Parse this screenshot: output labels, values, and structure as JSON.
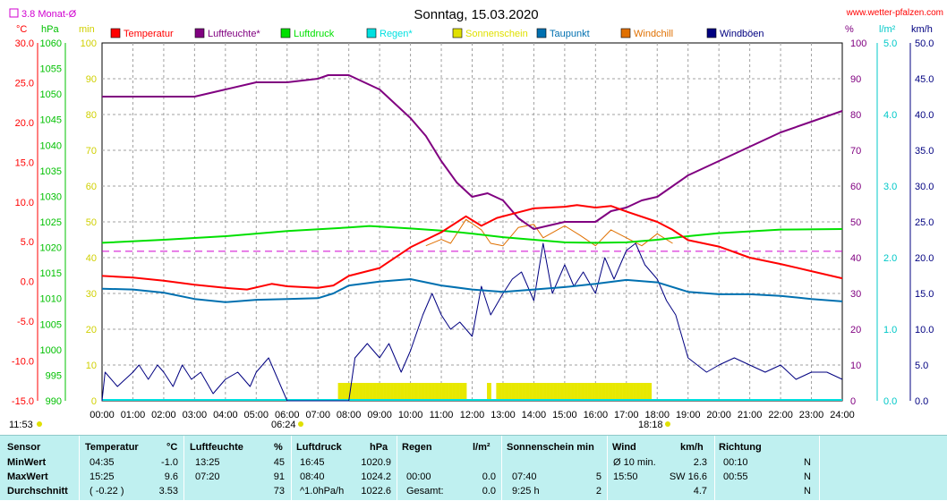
{
  "header": {
    "title": "Sonntag, 15.03.2020",
    "site": "www.wetter-pfalzen.com",
    "monthly_avg_label": "3.8 Monat-Ø",
    "unit_celsius": "°C",
    "unit_hpa": "hPa",
    "unit_min": "min",
    "unit_percent": "%",
    "unit_lm2": "l/m²",
    "unit_kmh": "km/h",
    "sunrise_time": "06:24",
    "sunset_time": "18:18",
    "now_time": "11:53"
  },
  "legend": [
    {
      "label": "Temperatur",
      "color": "#ff0000"
    },
    {
      "label": "Luftfeuchte*",
      "color": "#800080"
    },
    {
      "label": "Luftdruck",
      "color": "#00e000"
    },
    {
      "label": "Regen*",
      "color": "#00e0e0"
    },
    {
      "label": "Sonnenschein",
      "color": "#e0e000"
    },
    {
      "label": "Taupunkt",
      "color": "#0070b0"
    },
    {
      "label": "Windchill",
      "color": "#e07000"
    },
    {
      "label": "Windböen",
      "color": "#000080"
    }
  ],
  "chart_data": {
    "type": "line",
    "title": "Sonntag, 15.03.2020",
    "x_ticks": [
      "00:00",
      "01:00",
      "02:00",
      "03:00",
      "04:00",
      "05:00",
      "06:00",
      "07:00",
      "08:00",
      "09:00",
      "10:00",
      "11:00",
      "12:00",
      "13:00",
      "14:00",
      "15:00",
      "16:00",
      "17:00",
      "18:00",
      "19:00",
      "20:00",
      "21:00",
      "22:00",
      "23:00",
      "24:00"
    ],
    "axes": {
      "temperature_c": {
        "min": -15,
        "max": 30,
        "ticks": [
          "30.0",
          "25.0",
          "20.0",
          "15.0",
          "10.0",
          "5.0",
          "0.0",
          "-5.0",
          "-10.0",
          "-15.0"
        ]
      },
      "pressure_hpa": {
        "min": 990,
        "max": 1060,
        "ticks": [
          "1060",
          "1055",
          "1050",
          "1045",
          "1040",
          "1035",
          "1030",
          "1025",
          "1020",
          "1015",
          "1010",
          "1005",
          "1000",
          "995",
          "990"
        ]
      },
      "sunshine_min": {
        "min": 0,
        "max": 100,
        "ticks": [
          "100",
          "90",
          "80",
          "70",
          "60",
          "50",
          "40",
          "30",
          "20",
          "10",
          "0"
        ]
      },
      "humidity_pct": {
        "min": 0,
        "max": 100,
        "ticks": [
          "100",
          "90",
          "80",
          "70",
          "60",
          "50",
          "40",
          "30",
          "20",
          "10",
          "0"
        ]
      },
      "rain_lm2": {
        "min": 0,
        "max": 5,
        "ticks": [
          "5.0",
          "4.0",
          "3.0",
          "2.0",
          "1.0",
          "0.0"
        ]
      },
      "wind_kmh": {
        "min": 0,
        "max": 50,
        "ticks": [
          "50.0",
          "45.0",
          "40.0",
          "35.0",
          "30.0",
          "25.0",
          "20.0",
          "15.0",
          "10.0",
          "5.0",
          "0.0"
        ]
      }
    },
    "monthly_avg_temperature": 3.8,
    "series": [
      {
        "name": "Temperatur",
        "color": "#ff0000",
        "axis": "temperature_c",
        "points": [
          [
            0,
            0.7
          ],
          [
            1,
            0.5
          ],
          [
            2,
            0.1
          ],
          [
            3,
            -0.4
          ],
          [
            4,
            -0.8
          ],
          [
            4.7,
            -1.0
          ],
          [
            5.5,
            -0.3
          ],
          [
            6,
            -0.6
          ],
          [
            7,
            -0.8
          ],
          [
            7.5,
            -0.5
          ],
          [
            8,
            0.7
          ],
          [
            9,
            1.7
          ],
          [
            10,
            4.3
          ],
          [
            11,
            6.2
          ],
          [
            11.8,
            8.2
          ],
          [
            12.3,
            7.0
          ],
          [
            12.8,
            8.0
          ],
          [
            13.5,
            8.7
          ],
          [
            14,
            9.2
          ],
          [
            15,
            9.4
          ],
          [
            15.4,
            9.6
          ],
          [
            16,
            9.3
          ],
          [
            16.5,
            9.5
          ],
          [
            17,
            8.8
          ],
          [
            18,
            7.5
          ],
          [
            18.5,
            6.5
          ],
          [
            19,
            5.2
          ],
          [
            20,
            4.4
          ],
          [
            21,
            3.0
          ],
          [
            22,
            2.2
          ],
          [
            23,
            1.3
          ],
          [
            24,
            0.4
          ]
        ]
      },
      {
        "name": "Luftfeuchte*",
        "color": "#800080",
        "axis": "humidity_pct",
        "points": [
          [
            0,
            85
          ],
          [
            1,
            85
          ],
          [
            2,
            85
          ],
          [
            3,
            85
          ],
          [
            3.5,
            86
          ],
          [
            4,
            87
          ],
          [
            5,
            89
          ],
          [
            6,
            89
          ],
          [
            7,
            90
          ],
          [
            7.33,
            91
          ],
          [
            8,
            91
          ],
          [
            9,
            87
          ],
          [
            10,
            79
          ],
          [
            10.5,
            74
          ],
          [
            11,
            67
          ],
          [
            11.5,
            61
          ],
          [
            12,
            57
          ],
          [
            12.5,
            58
          ],
          [
            13,
            56
          ],
          [
            13.5,
            51
          ],
          [
            14,
            48
          ],
          [
            14.5,
            49
          ],
          [
            15,
            50
          ],
          [
            16,
            50
          ],
          [
            16.5,
            53
          ],
          [
            17,
            54
          ],
          [
            17.5,
            56
          ],
          [
            18,
            57
          ],
          [
            19,
            63
          ],
          [
            20,
            67
          ],
          [
            21,
            71
          ],
          [
            22,
            75
          ],
          [
            23,
            78
          ],
          [
            24,
            81
          ]
        ]
      },
      {
        "name": "Luftdruck",
        "color": "#00e000",
        "axis": "pressure_hpa",
        "points": [
          [
            0,
            1020.9
          ],
          [
            2,
            1021.5
          ],
          [
            4,
            1022.2
          ],
          [
            6,
            1023.2
          ],
          [
            8,
            1023.9
          ],
          [
            8.67,
            1024.2
          ],
          [
            10,
            1023.7
          ],
          [
            11,
            1023.3
          ],
          [
            12,
            1022.7
          ],
          [
            13,
            1022.0
          ],
          [
            14,
            1021.5
          ],
          [
            15,
            1021.0
          ],
          [
            16,
            1020.9
          ],
          [
            17,
            1021.0
          ],
          [
            18,
            1021.5
          ],
          [
            19,
            1022.2
          ],
          [
            20,
            1022.8
          ],
          [
            22,
            1023.5
          ],
          [
            24,
            1023.6
          ]
        ]
      },
      {
        "name": "Taupunkt",
        "color": "#0070b0",
        "axis": "temperature_c",
        "points": [
          [
            0,
            -0.9
          ],
          [
            1,
            -1.0
          ],
          [
            2,
            -1.4
          ],
          [
            3,
            -2.2
          ],
          [
            4,
            -2.6
          ],
          [
            5,
            -2.3
          ],
          [
            6,
            -2.2
          ],
          [
            7,
            -2.1
          ],
          [
            7.5,
            -1.5
          ],
          [
            8,
            -0.5
          ],
          [
            9,
            0.0
          ],
          [
            10,
            0.3
          ],
          [
            11,
            -0.5
          ],
          [
            12,
            -1.0
          ],
          [
            13,
            -1.3
          ],
          [
            14,
            -1.0
          ],
          [
            15,
            -0.7
          ],
          [
            16,
            -0.3
          ],
          [
            17,
            0.2
          ],
          [
            18,
            -0.1
          ],
          [
            19,
            -1.3
          ],
          [
            20,
            -1.6
          ],
          [
            21,
            -1.6
          ],
          [
            22,
            -1.8
          ],
          [
            23,
            -2.2
          ],
          [
            24,
            -2.5
          ]
        ]
      },
      {
        "name": "Windchill",
        "color": "#e07000",
        "axis": "temperature_c",
        "points": [
          [
            10.5,
            4.5
          ],
          [
            11,
            5.3
          ],
          [
            11.3,
            4.8
          ],
          [
            11.8,
            7.8
          ],
          [
            12.3,
            6.5
          ],
          [
            12.6,
            4.8
          ],
          [
            13,
            4.5
          ],
          [
            13.5,
            6.8
          ],
          [
            14,
            7.2
          ],
          [
            14.3,
            5.5
          ],
          [
            15,
            7.0
          ],
          [
            15.5,
            5.8
          ],
          [
            16,
            4.5
          ],
          [
            16.5,
            6.5
          ],
          [
            17,
            5.5
          ],
          [
            17.5,
            4.5
          ],
          [
            18,
            6.0
          ],
          [
            18.5,
            4.8
          ]
        ]
      },
      {
        "name": "Windböen",
        "color": "#000080",
        "axis": "wind_kmh",
        "points": [
          [
            0,
            0
          ],
          [
            0.1,
            4
          ],
          [
            0.5,
            2
          ],
          [
            1,
            4
          ],
          [
            1.2,
            5
          ],
          [
            1.5,
            3
          ],
          [
            1.8,
            5
          ],
          [
            2,
            4
          ],
          [
            2.3,
            2
          ],
          [
            2.6,
            5
          ],
          [
            2.9,
            3
          ],
          [
            3.2,
            4
          ],
          [
            3.6,
            1
          ],
          [
            4,
            3
          ],
          [
            4.4,
            4
          ],
          [
            4.8,
            2
          ],
          [
            5,
            4
          ],
          [
            5.4,
            6
          ],
          [
            5.6,
            4
          ],
          [
            6,
            0
          ],
          [
            6.3,
            0
          ],
          [
            8,
            0
          ],
          [
            8.2,
            6
          ],
          [
            8.6,
            8
          ],
          [
            9,
            6
          ],
          [
            9.3,
            8
          ],
          [
            9.7,
            4
          ],
          [
            10,
            7
          ],
          [
            10.4,
            12
          ],
          [
            10.7,
            15
          ],
          [
            11,
            12
          ],
          [
            11.3,
            10
          ],
          [
            11.6,
            11
          ],
          [
            12,
            9
          ],
          [
            12.3,
            16
          ],
          [
            12.6,
            12
          ],
          [
            13,
            15
          ],
          [
            13.3,
            17
          ],
          [
            13.6,
            18
          ],
          [
            14,
            14
          ],
          [
            14.3,
            22
          ],
          [
            14.6,
            15
          ],
          [
            15,
            19
          ],
          [
            15.3,
            16
          ],
          [
            15.6,
            18
          ],
          [
            16,
            15
          ],
          [
            16.3,
            20
          ],
          [
            16.6,
            17
          ],
          [
            17,
            21
          ],
          [
            17.3,
            22
          ],
          [
            17.6,
            19
          ],
          [
            18,
            17
          ],
          [
            18.3,
            14
          ],
          [
            18.6,
            12
          ],
          [
            19,
            6
          ],
          [
            19.3,
            5
          ],
          [
            19.6,
            4
          ],
          [
            20,
            5
          ],
          [
            20.5,
            6
          ],
          [
            21,
            5
          ],
          [
            21.5,
            4
          ],
          [
            22,
            5
          ],
          [
            22.5,
            3
          ],
          [
            23,
            4
          ],
          [
            23.5,
            4
          ],
          [
            24,
            3
          ]
        ]
      }
    ],
    "sunshine_intervals": [
      [
        7.67,
        11.83
      ],
      [
        12.5,
        12.6
      ],
      [
        12.8,
        17.83
      ]
    ],
    "rain_total": 0.0
  },
  "stats": {
    "headers": {
      "sensor": "Sensor",
      "temperature": "Temperatur",
      "temp_unit": "°C",
      "humidity": "Luftfeuchte",
      "hum_unit": "%",
      "pressure": "Luftdruck",
      "press_unit": "hPa",
      "rain": "Regen",
      "rain_unit": "l/m²",
      "sunshine": "Sonnenschein min",
      "wind": "Wind",
      "wind_unit": "km/h",
      "direction": "Richtung"
    },
    "rows": [
      {
        "label": "MinWert",
        "temp_time": "04:35",
        "temp_val": "-1.0",
        "hum_time": "13:25",
        "hum_val": "45",
        "press_time": "16:45",
        "press_val": "1020.9",
        "rain_time": "",
        "rain_val": "",
        "sun_time": "",
        "sun_val": "",
        "wind_time": "Ø 10 min.",
        "wind_val": "2.3",
        "dir_time": "00:10",
        "dir_val": "N"
      },
      {
        "label": "MaxWert",
        "temp_time": "15:25",
        "temp_val": "9.6",
        "hum_time": "07:20",
        "hum_val": "91",
        "press_time": "08:40",
        "press_val": "1024.2",
        "rain_time": "00:00",
        "rain_val": "0.0",
        "sun_time": "07:40",
        "sun_val": "5",
        "wind_time": "15:50",
        "wind_val": "SW 16.6",
        "dir_time": "00:55",
        "dir_val": "N"
      },
      {
        "label": "Durchschnitt",
        "temp_time": "( -0.22 )",
        "temp_val": "3.53",
        "hum_time": "",
        "hum_val": "73",
        "press_time": "^1.0hPa/h",
        "press_val": "1022.6",
        "rain_time": "Gesamt:",
        "rain_val": "0.0",
        "sun_time": "9:25 h",
        "sun_val": "2",
        "wind_time": "",
        "wind_val": "4.7",
        "dir_time": "",
        "dir_val": "N"
      }
    ]
  }
}
